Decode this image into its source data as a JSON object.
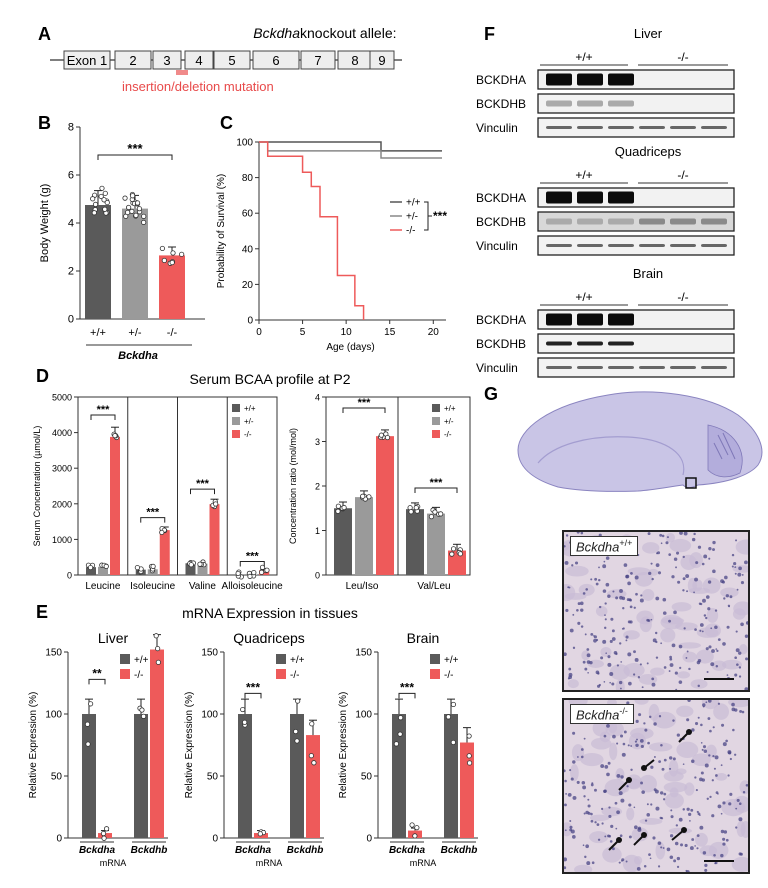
{
  "colors": {
    "wt": "#5a5a5a",
    "het": "#9a9a9a",
    "ko": "#ee5a5a",
    "red_text": "#e84a4a"
  },
  "panelA": {
    "letter": "A",
    "title_gene": "Bckdha",
    "title_rest": " knockout allele:",
    "exons": [
      "Exon 1",
      "2",
      "3",
      "4",
      "5",
      "6",
      "7",
      "8",
      "9"
    ],
    "mutation_label": "insertion/deletion mutation"
  },
  "panelB": {
    "letter": "B",
    "ylabel": "Body Weight (g)",
    "yticks": [
      "0",
      "2",
      "4",
      "6",
      "8"
    ],
    "groups": [
      "+/+",
      "+/-",
      "-/-"
    ],
    "xlabel": "Bckdha",
    "sig": "***",
    "chart_data": {
      "type": "bar",
      "categories": [
        "+/+",
        "+/-",
        "-/-"
      ],
      "values": [
        4.75,
        4.6,
        2.65
      ],
      "errors": [
        0.6,
        0.55,
        0.35
      ],
      "ylim": [
        0,
        8
      ]
    }
  },
  "panelC": {
    "letter": "C",
    "ylabel": "Probability of Survival (%)",
    "xlabel": "Age (days)",
    "yticks": [
      "0",
      "20",
      "40",
      "60",
      "80",
      "100"
    ],
    "xticks": [
      "0",
      "5",
      "10",
      "15",
      "20"
    ],
    "legend": [
      "+/+",
      "+/-",
      "-/-"
    ],
    "sig": "***",
    "chart_data": {
      "type": "line",
      "xlim": [
        0,
        21
      ],
      "ylim": [
        0,
        100
      ],
      "series": [
        {
          "name": "+/+",
          "x": [
            0,
            1,
            14,
            21
          ],
          "y": [
            100,
            100,
            95,
            95
          ]
        },
        {
          "name": "+/-",
          "x": [
            0,
            1,
            14,
            21
          ],
          "y": [
            100,
            95,
            91,
            91
          ]
        },
        {
          "name": "-/-",
          "x": [
            0,
            1,
            5,
            6,
            7,
            9,
            11,
            12
          ],
          "y": [
            100,
            92,
            83,
            75,
            58,
            25,
            8,
            0
          ]
        }
      ]
    }
  },
  "panelD": {
    "letter": "D",
    "title": "Serum BCAA profile at P2",
    "ylabel_left": "Serum Concentration (µmol/L)",
    "ylabel_right": "Concentration ratio (mol/mol)",
    "yticks_left": [
      "0",
      "1000",
      "2000",
      "3000",
      "4000",
      "5000"
    ],
    "yticks_right": [
      "0",
      "1",
      "2",
      "3",
      "4"
    ],
    "categories_left": [
      "Leucine",
      "Isoleucine",
      "Valine",
      "Alloisoleucine"
    ],
    "categories_right": [
      "Leu/Iso",
      "Val/Leu"
    ],
    "legend": [
      "+/+",
      "+/-",
      "-/-"
    ],
    "sig": "***",
    "chart_data": [
      {
        "type": "bar",
        "categories": [
          "Leucine",
          "Isoleucine",
          "Valine",
          "Alloisoleucine"
        ],
        "ylim": [
          0,
          5000
        ],
        "series": [
          {
            "name": "+/+",
            "values": [
              220,
              150,
              330,
              15
            ]
          },
          {
            "name": "+/-",
            "values": [
              230,
              160,
              320,
              15
            ]
          },
          {
            "name": "-/-",
            "values": [
              3880,
              1260,
              1990,
              140
            ]
          }
        ]
      },
      {
        "type": "bar",
        "categories": [
          "Leu/Iso",
          "Val/Leu"
        ],
        "ylim": [
          0,
          4
        ],
        "series": [
          {
            "name": "+/+",
            "values": [
              1.5,
              1.48
            ]
          },
          {
            "name": "+/-",
            "values": [
              1.75,
              1.38
            ]
          },
          {
            "name": "-/-",
            "values": [
              3.12,
              0.55
            ]
          }
        ]
      }
    ]
  },
  "panelE": {
    "letter": "E",
    "title": "mRNA Expression in tissues",
    "ylabel": "Relative Expression (%)",
    "xlabel": "mRNA",
    "yticks": [
      "0",
      "50",
      "100",
      "150"
    ],
    "legend": [
      "+/+",
      "-/-"
    ],
    "genes": [
      "Bckdha",
      "Bckdhb"
    ],
    "chart_data": [
      {
        "type": "bar",
        "title": "Liver",
        "sig": "**",
        "categories": [
          "Bckdha",
          "Bckdhb"
        ],
        "ylim": [
          0,
          150
        ],
        "series": [
          {
            "name": "+/+",
            "values": [
              100,
              100
            ]
          },
          {
            "name": "-/-",
            "values": [
              4,
              152
            ]
          }
        ]
      },
      {
        "type": "bar",
        "title": "Quadriceps",
        "sig": "***",
        "categories": [
          "Bckdha",
          "Bckdhb"
        ],
        "ylim": [
          0,
          150
        ],
        "series": [
          {
            "name": "+/+",
            "values": [
              100,
              100
            ]
          },
          {
            "name": "-/-",
            "values": [
              4,
              83
            ]
          }
        ]
      },
      {
        "type": "bar",
        "title": "Brain",
        "sig": "***",
        "categories": [
          "Bckdha",
          "Bckdhb"
        ],
        "ylim": [
          0,
          150
        ],
        "series": [
          {
            "name": "+/+",
            "values": [
              100,
              100
            ]
          },
          {
            "name": "-/-",
            "values": [
              6,
              77
            ]
          }
        ]
      }
    ]
  },
  "panelF": {
    "letter": "F",
    "genotypes": [
      "+/+",
      "-/-"
    ],
    "blots": [
      {
        "tissue": "Liver",
        "rows": [
          "BCKDHA",
          "BCKDHB",
          "Vinculin"
        ]
      },
      {
        "tissue": "Quadriceps",
        "rows": [
          "BCKDHA",
          "BCKDHB",
          "Vinculin"
        ]
      },
      {
        "tissue": "Brain",
        "rows": [
          "BCKDHA",
          "BCKDHB",
          "Vinculin"
        ]
      }
    ]
  },
  "panelG": {
    "letter": "G",
    "top_gene": "Bckdha",
    "top_sup": "+/+",
    "bottom_gene": "Bckdha",
    "bottom_sup": "-/-"
  }
}
